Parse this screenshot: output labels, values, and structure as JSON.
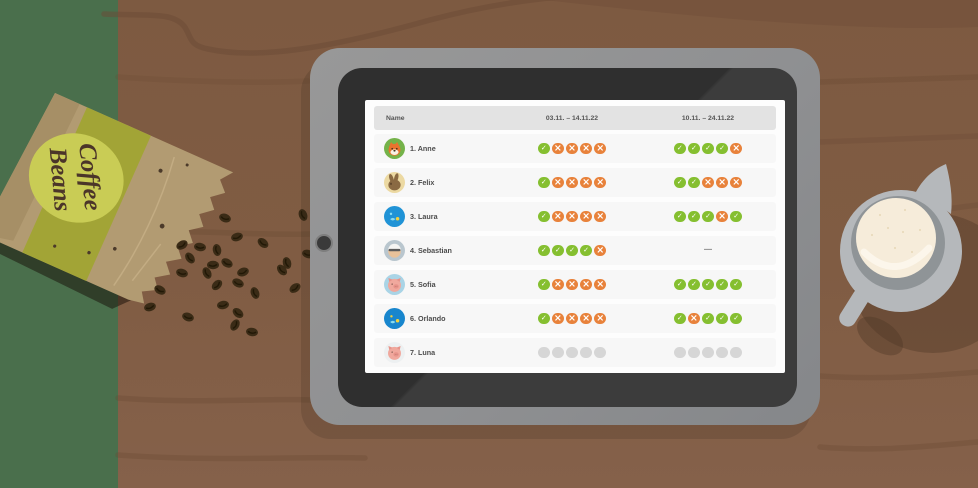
{
  "scene": {
    "bag": {
      "label_line1": "Coffee",
      "label_line2": "Beans"
    }
  },
  "app": {
    "header": {
      "name": "Name",
      "period1": "03.11. – 14.11.22",
      "period2": "10.11. – 24.11.22"
    },
    "rows": [
      {
        "name": "1. Anne",
        "avatar": "fox",
        "period1": [
          "check",
          "cross",
          "cross",
          "cross",
          "cross"
        ],
        "period2": [
          "check",
          "check",
          "check",
          "check",
          "cross"
        ]
      },
      {
        "name": "2. Felix",
        "avatar": "rabbit",
        "period1": [
          "check",
          "cross",
          "cross",
          "cross",
          "cross"
        ],
        "period2": [
          "check",
          "check",
          "cross",
          "cross",
          "cross"
        ]
      },
      {
        "name": "3. Laura",
        "avatar": "bird",
        "period1": [
          "check",
          "cross",
          "cross",
          "cross",
          "cross"
        ],
        "period2": [
          "check",
          "check",
          "check",
          "cross",
          "check"
        ]
      },
      {
        "name": "4. Sebastian",
        "avatar": "person",
        "period1": [
          "check",
          "check",
          "check",
          "check",
          "cross"
        ],
        "period2": [
          "dash"
        ]
      },
      {
        "name": "5. Sofia",
        "avatar": "pig",
        "period1": [
          "check",
          "cross",
          "cross",
          "cross",
          "cross"
        ],
        "period2": [
          "check",
          "check",
          "check",
          "check",
          "check"
        ]
      },
      {
        "name": "6. Orlando",
        "avatar": "planet",
        "period1": [
          "check",
          "cross",
          "cross",
          "cross",
          "cross"
        ],
        "period2": [
          "check",
          "cross",
          "check",
          "check",
          "check"
        ]
      },
      {
        "name": "7. Luna",
        "avatar": "pig_light",
        "period1": [
          "empty",
          "empty",
          "empty",
          "empty",
          "empty"
        ],
        "period2": [
          "empty",
          "empty",
          "empty",
          "empty",
          "empty"
        ]
      }
    ],
    "icons": {
      "check": "✓",
      "cross": "×",
      "dash": "—",
      "empty": ""
    },
    "colors": {
      "check": "#85bf30",
      "cross": "#e8823b",
      "empty": "#d6d6d6"
    }
  }
}
